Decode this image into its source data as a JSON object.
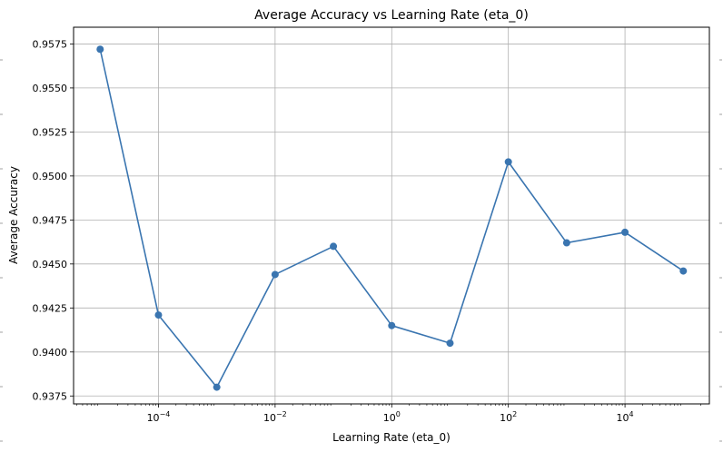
{
  "chart_data": {
    "type": "line",
    "title": "Average Accuracy vs Learning Rate (eta_0)",
    "xlabel": "Learning Rate (eta_0)",
    "ylabel": "Average Accuracy",
    "x_scale": "log",
    "x_ticks": [
      {
        "value": 0.0001,
        "base": "10",
        "exp": "−4"
      },
      {
        "value": 0.01,
        "base": "10",
        "exp": "−2"
      },
      {
        "value": 1,
        "base": "10",
        "exp": "0"
      },
      {
        "value": 100,
        "base": "10",
        "exp": "2"
      },
      {
        "value": 10000,
        "base": "10",
        "exp": "4"
      }
    ],
    "y_ticks": [
      "0.9375",
      "0.9400",
      "0.9425",
      "0.9450",
      "0.9475",
      "0.9500",
      "0.9525",
      "0.9550",
      "0.9575"
    ],
    "xlim": [
      3.5e-06,
      280000
    ],
    "ylim": [
      0.93705,
      0.95845
    ],
    "grid": true,
    "series_color": "#3a75b0",
    "series": [
      {
        "x": [
          1e-05,
          0.0001,
          0.001,
          0.01,
          0.1,
          1,
          10,
          100,
          1000,
          10000,
          100000
        ],
        "values": [
          0.9572,
          0.9421,
          0.938,
          0.9444,
          0.946,
          0.9415,
          0.9405,
          0.9508,
          0.9462,
          0.9468,
          0.9446
        ]
      }
    ]
  }
}
